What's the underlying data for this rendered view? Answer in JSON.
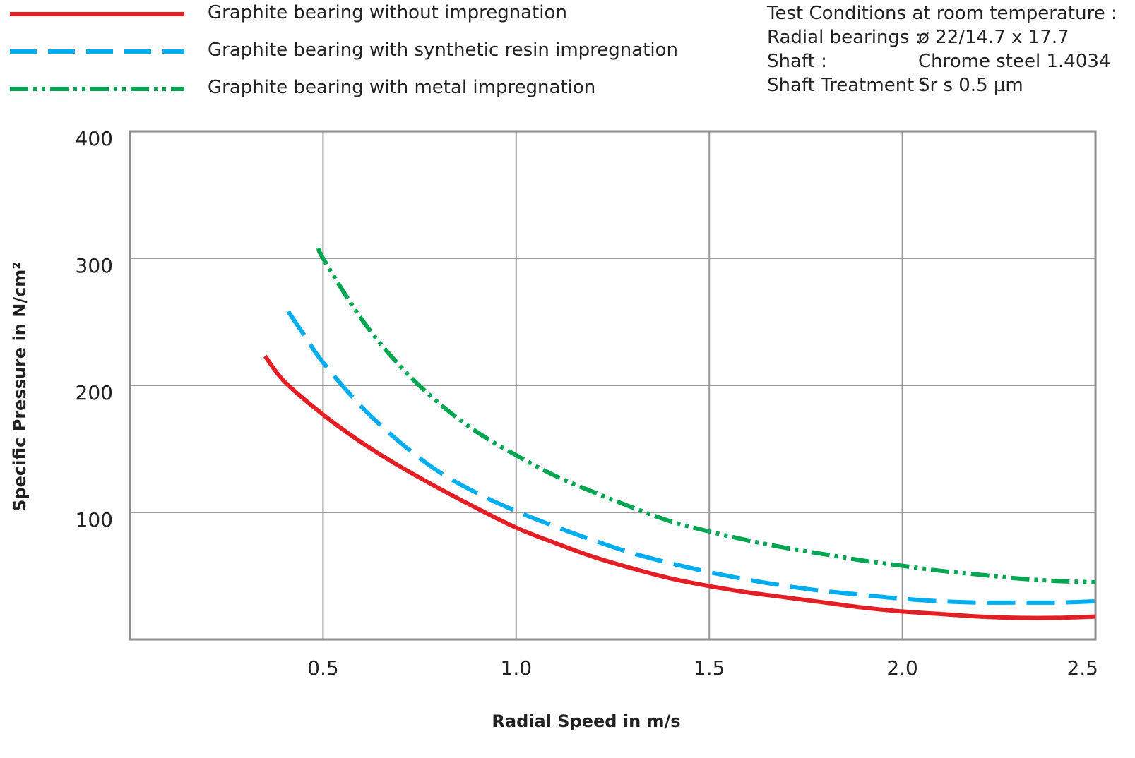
{
  "conditions": {
    "title": "Test Conditions at room temperature :",
    "rows": [
      {
        "key": "Radial bearings :",
        "value": "ø 22/14.7 x 17.7"
      },
      {
        "key": "Shaft :",
        "value": "Chrome steel 1.4034"
      },
      {
        "key": "Shaft Treatment :",
        "value": "Sr s 0.5 µm"
      }
    ]
  },
  "chart_data": {
    "type": "line",
    "xlabel": "Radial Speed in m/s",
    "ylabel": "Specific Pressure in N/cm²",
    "xlim": [
      0,
      2.5
    ],
    "ylim": [
      0,
      400
    ],
    "x_ticks": [
      "0.5",
      "1.0",
      "1.5",
      "2.0",
      "2.5"
    ],
    "y_ticks": [
      "100",
      "200",
      "300",
      "400"
    ],
    "grid": true,
    "legend_position": "top-left",
    "series": [
      {
        "name": "Graphite bearing without impregnation",
        "color": "#e31e25",
        "style": "solid",
        "x": [
          0.35,
          0.4,
          0.5,
          0.6,
          0.7,
          0.8,
          0.9,
          1.0,
          1.1,
          1.2,
          1.3,
          1.4,
          1.5,
          1.6,
          1.7,
          1.8,
          1.9,
          2.0,
          2.1,
          2.2,
          2.3,
          2.4,
          2.5
        ],
        "y": [
          223,
          203,
          177,
          155,
          136,
          119,
          103,
          88,
          76,
          65,
          56,
          48,
          42,
          37,
          33,
          29,
          25,
          22,
          20,
          18,
          17,
          17,
          18
        ]
      },
      {
        "name": "Graphite bearing with synthetic resin impregnation",
        "color": "#00aeef",
        "style": "dashed",
        "x": [
          0.41,
          0.45,
          0.5,
          0.6,
          0.7,
          0.8,
          0.9,
          1.0,
          1.1,
          1.2,
          1.3,
          1.4,
          1.5,
          1.6,
          1.7,
          1.8,
          1.9,
          2.0,
          2.1,
          2.2,
          2.3,
          2.4,
          2.5
        ],
        "y": [
          258,
          240,
          218,
          183,
          155,
          132,
          115,
          101,
          89,
          78,
          68,
          60,
          53,
          47,
          42,
          38,
          35,
          32,
          30,
          29,
          29,
          29,
          30
        ]
      },
      {
        "name": "Graphite bearing with metal impregnation",
        "color": "#00a651",
        "style": "dash-dot-dot",
        "x": [
          0.49,
          0.5,
          0.6,
          0.7,
          0.8,
          0.9,
          1.0,
          1.1,
          1.2,
          1.3,
          1.4,
          1.5,
          1.6,
          1.7,
          1.8,
          1.9,
          2.0,
          2.1,
          2.2,
          2.3,
          2.4,
          2.5
        ],
        "y": [
          308,
          300,
          252,
          215,
          186,
          163,
          145,
          129,
          116,
          104,
          93,
          85,
          78,
          72,
          67,
          62,
          58,
          54,
          51,
          48,
          46,
          45
        ]
      }
    ]
  }
}
